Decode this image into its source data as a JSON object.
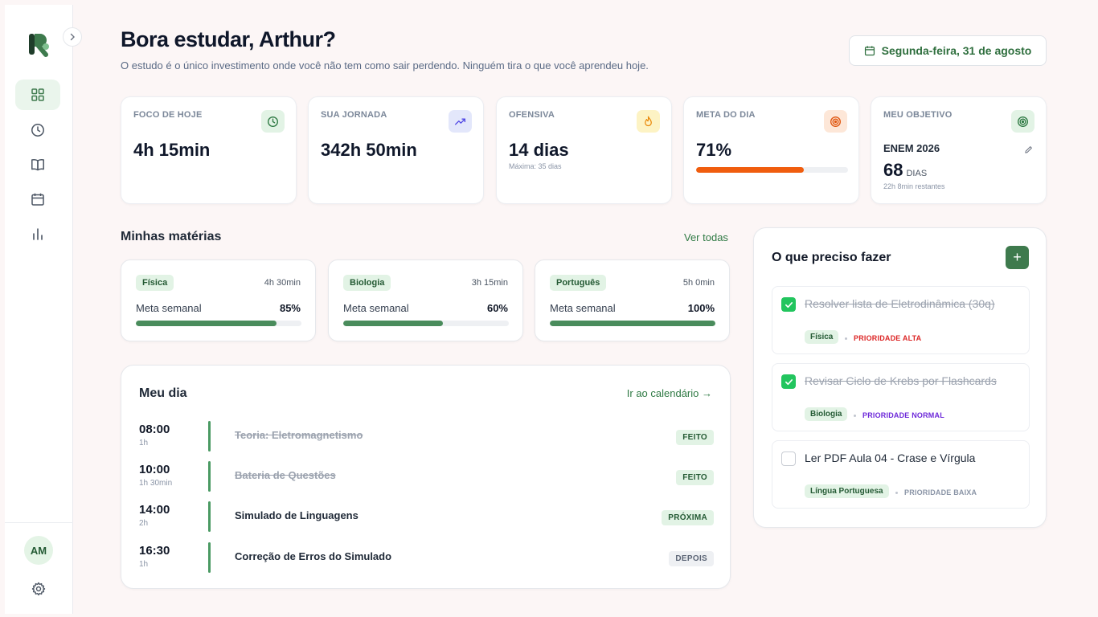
{
  "sidebar": {
    "nav_items": [
      "dashboard",
      "history",
      "library",
      "calendar",
      "stats"
    ],
    "avatar_initials": "AM"
  },
  "header": {
    "greeting": "Bora estudar, Arthur?",
    "subtitle": "O estudo é o único investimento onde você não tem como sair perdendo. Ninguém tira o que você aprendeu hoje.",
    "date": "Segunda-feira, 31 de agosto"
  },
  "stats": {
    "focus": {
      "label": "FOCO DE HOJE",
      "value": "4h 15min"
    },
    "journey": {
      "label": "SUA JORNADA",
      "value": "342h 50min"
    },
    "streak": {
      "label": "OFENSIVA",
      "value": "14 dias",
      "sub": "Máxima: 35 dias"
    },
    "goal": {
      "label": "META DO DIA",
      "value": "71%",
      "progress": 0.71
    },
    "objective": {
      "label": "MEU OBJETIVO",
      "name": "ENEM 2026",
      "days": "68",
      "days_unit": "DIAS",
      "remaining": "22h 8min restantes"
    }
  },
  "subjects": {
    "title": "Minhas matérias",
    "see_all": "Ver todas",
    "items": [
      {
        "name": "Física",
        "time": "4h 30min",
        "meta_label": "Meta semanal",
        "pct": "85%",
        "progress": 0.85
      },
      {
        "name": "Biologia",
        "time": "3h 15min",
        "meta_label": "Meta semanal",
        "pct": "60%",
        "progress": 0.6
      },
      {
        "name": "Português",
        "time": "5h 0min",
        "meta_label": "Meta semanal",
        "pct": "100%",
        "progress": 1.0
      }
    ]
  },
  "day": {
    "title": "Meu dia",
    "calendar_link": "Ir ao calendário →",
    "items": [
      {
        "time": "08:00",
        "duration": "1h",
        "name": "Teoria: Eletromagnetismo",
        "status": "FEITO",
        "done": true
      },
      {
        "time": "10:00",
        "duration": "1h 30min",
        "name": "Bateria de Questões",
        "status": "FEITO",
        "done": true
      },
      {
        "time": "14:00",
        "duration": "2h",
        "name": "Simulado de Linguagens",
        "status": "PRÓXIMA",
        "done": false
      },
      {
        "time": "16:30",
        "duration": "1h",
        "name": "Correção de Erros do Simulado",
        "status": "DEPOIS",
        "done": false
      }
    ]
  },
  "todo": {
    "title": "O que preciso fazer",
    "add_label": "+",
    "items": [
      {
        "text": "Resolver lista de Eletrodinâmica (30q)",
        "tag": "Física",
        "priority": "PRIORIDADE ALTA",
        "done": true
      },
      {
        "text": "Revisar Ciclo de Krebs por Flashcards",
        "tag": "Biologia",
        "priority": "PRIORIDADE NORMAL",
        "done": true
      },
      {
        "text": "Ler PDF Aula 04 - Crase e Vírgula",
        "tag": "Língua Portuguesa",
        "priority": "PRIORIDADE BAIXA",
        "done": false
      }
    ]
  },
  "colors": {
    "primary": "#3e7a4d",
    "priority_high": "#dc2626",
    "priority_normal": "#6d28d9",
    "priority_low": "#8a94a6",
    "goal_bar": "#f05d0e"
  }
}
